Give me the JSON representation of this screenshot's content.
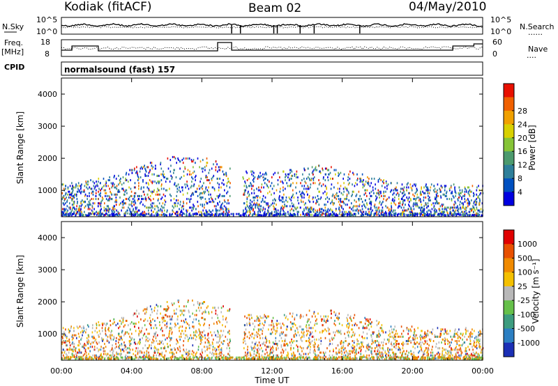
{
  "header": {
    "station": "Kodiak (fitACF)",
    "beam": "Beam 02",
    "date": "04/May/2010"
  },
  "noise_panel": {
    "left_label": "N.Sky",
    "right_label": "N.Search",
    "right_legend": "......",
    "left_ticks": [
      "10^5",
      "10^0"
    ],
    "right_ticks": [
      "10^5",
      "10^0"
    ]
  },
  "freq_panel": {
    "left_label_1": "Freq.",
    "left_label_2": "[MHz]",
    "right_label": "Nave",
    "right_legend": "....",
    "left_ticks": [
      "18",
      "8"
    ],
    "right_ticks": [
      "60",
      "0"
    ]
  },
  "cpid": {
    "label": "CPID",
    "program": "normalsound (fast) 157"
  },
  "chart_data": [
    {
      "type": "heatmap",
      "name": "power",
      "ylabel": "Slant Range [km]",
      "ylim": [
        180,
        4500
      ],
      "yticks": [
        "1000",
        "2000",
        "3000",
        "4000"
      ],
      "ytick_values": [
        1000,
        2000,
        3000,
        4000
      ],
      "colorbar_label": "Power [dB]",
      "colorbar_ticks": [
        "4",
        "8",
        "12",
        "16",
        "20",
        "24",
        "28"
      ],
      "colorbar_colors": [
        "#0000e0",
        "#0050c0",
        "#2e7f9a",
        "#4c9a6e",
        "#86c437",
        "#d8d000",
        "#f0a000",
        "#f06000",
        "#e81000"
      ],
      "x_hours_range": [
        0,
        24
      ]
    },
    {
      "type": "heatmap",
      "name": "velocity",
      "ylabel": "Slant Range [km]",
      "ylim": [
        180,
        4500
      ],
      "yticks": [
        "1000",
        "2000",
        "3000",
        "4000"
      ],
      "ytick_values": [
        1000,
        2000,
        3000,
        4000
      ],
      "colorbar_label": "Velocity [m s⁻¹]",
      "colorbar_ticks": [
        "1000",
        "500",
        "100",
        "25",
        "-25",
        "-100",
        "-500",
        "-1000"
      ],
      "colorbar_colors": [
        "#1b2fb5",
        "#2c7fc2",
        "#3d9c7f",
        "#66c04a",
        "#b8b8b8",
        "#f4c000",
        "#f08a00",
        "#e85000",
        "#e00000"
      ],
      "xlabel": "Time UT",
      "xticks": [
        "00:00",
        "04:00",
        "08:00",
        "12:00",
        "16:00",
        "20:00",
        "00:00"
      ],
      "x_hours_range": [
        0,
        24
      ]
    }
  ]
}
